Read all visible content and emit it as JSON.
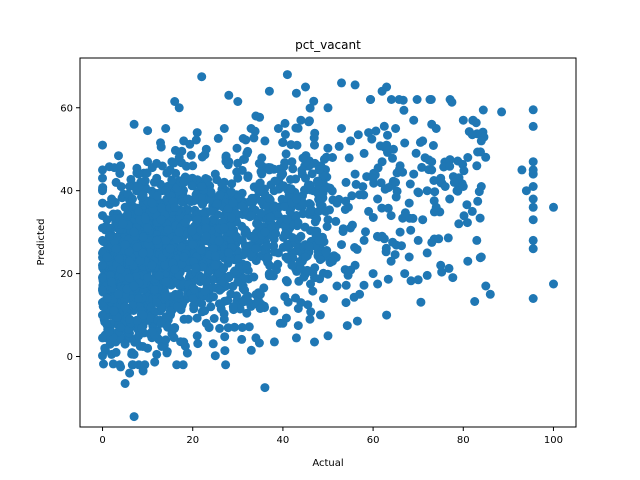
{
  "chart_data": {
    "type": "scatter",
    "title": "pct_vacant",
    "xlabel": "Actual",
    "ylabel": "Predicted",
    "xlim": [
      -5,
      105
    ],
    "ylim": [
      -17,
      72
    ],
    "x_ticks": [
      "0",
      "20",
      "40",
      "60",
      "80",
      "100"
    ],
    "y_ticks": [
      "0",
      "20",
      "40",
      "60"
    ],
    "grid": false,
    "marker_color": "#1f77b4",
    "point_count_approx": 1900,
    "points": [
      [
        0,
        0.2
      ],
      [
        0,
        4.5
      ],
      [
        0,
        10
      ],
      [
        0,
        13
      ],
      [
        0,
        16
      ],
      [
        0,
        19
      ],
      [
        0,
        22
      ],
      [
        0,
        25
      ],
      [
        0,
        28
      ],
      [
        0,
        31
      ],
      [
        0,
        34
      ],
      [
        0,
        37
      ],
      [
        0,
        40
      ],
      [
        0,
        43
      ],
      [
        0,
        45
      ],
      [
        0,
        51
      ],
      [
        0.5,
        2
      ],
      [
        0.8,
        8
      ],
      [
        1,
        14
      ],
      [
        1,
        24
      ],
      [
        1,
        33
      ],
      [
        1.5,
        6
      ],
      [
        1.5,
        29
      ],
      [
        2,
        0.5
      ],
      [
        2,
        18
      ],
      [
        2,
        38
      ],
      [
        2.5,
        11
      ],
      [
        3,
        1
      ],
      [
        3,
        26
      ],
      [
        3,
        42
      ],
      [
        3.5,
        15
      ],
      [
        4,
        -2.5
      ],
      [
        4,
        7
      ],
      [
        4,
        21
      ],
      [
        4,
        46
      ],
      [
        4.5,
        32
      ],
      [
        5,
        -6.5
      ],
      [
        5,
        3
      ],
      [
        5,
        12
      ],
      [
        5,
        27
      ],
      [
        5,
        36
      ],
      [
        6,
        -4
      ],
      [
        6,
        9
      ],
      [
        6,
        23
      ],
      [
        6,
        41
      ],
      [
        7,
        -14.5
      ],
      [
        7,
        0.5
      ],
      [
        7,
        17
      ],
      [
        7,
        30
      ],
      [
        7,
        56
      ],
      [
        8,
        5
      ],
      [
        8,
        14
      ],
      [
        8,
        35
      ],
      [
        8,
        44
      ],
      [
        9,
        -3.5
      ],
      [
        9,
        10
      ],
      [
        9,
        25
      ],
      [
        9,
        39
      ],
      [
        10,
        2
      ],
      [
        10,
        19
      ],
      [
        10,
        31
      ],
      [
        10,
        54.5
      ],
      [
        10,
        47
      ],
      [
        11,
        6
      ],
      [
        11,
        22
      ],
      [
        11,
        37
      ],
      [
        12,
        0.5
      ],
      [
        12,
        13
      ],
      [
        12,
        28
      ],
      [
        12,
        43
      ],
      [
        13,
        8
      ],
      [
        13,
        33
      ],
      [
        13,
        50.5
      ],
      [
        14,
        4
      ],
      [
        14,
        18
      ],
      [
        14,
        40
      ],
      [
        14,
        55
      ],
      [
        15,
        11
      ],
      [
        15,
        26
      ],
      [
        15,
        45
      ],
      [
        16,
        61.5
      ],
      [
        16,
        7
      ],
      [
        16,
        21
      ],
      [
        16,
        36
      ],
      [
        17,
        60
      ],
      [
        17,
        15
      ],
      [
        17,
        30
      ],
      [
        17,
        48
      ],
      [
        18,
        3.5
      ],
      [
        18,
        24
      ],
      [
        18,
        52
      ],
      [
        19,
        9
      ],
      [
        19,
        38
      ],
      [
        20,
        14
      ],
      [
        20,
        27
      ],
      [
        20,
        46
      ],
      [
        21,
        5
      ],
      [
        21,
        33
      ],
      [
        21,
        54
      ],
      [
        22,
        67.5
      ],
      [
        22,
        19
      ],
      [
        22,
        41
      ],
      [
        23,
        8
      ],
      [
        23,
        29
      ],
      [
        23,
        50
      ],
      [
        24,
        12
      ],
      [
        24,
        35
      ],
      [
        25,
        0.2
      ],
      [
        25,
        22
      ],
      [
        25,
        44
      ],
      [
        26,
        16
      ],
      [
        26,
        39
      ],
      [
        27,
        9
      ],
      [
        27,
        31
      ],
      [
        27,
        55
      ],
      [
        28,
        63
      ],
      [
        28,
        25
      ],
      [
        28,
        47
      ],
      [
        29,
        12
      ],
      [
        29,
        37
      ],
      [
        30,
        61.5
      ],
      [
        30,
        18
      ],
      [
        30,
        43
      ],
      [
        31,
        7
      ],
      [
        31,
        28
      ],
      [
        32,
        22
      ],
      [
        32,
        49
      ],
      [
        33,
        1.5
      ],
      [
        33,
        34
      ],
      [
        34,
        4.5
      ],
      [
        34,
        26
      ],
      [
        34,
        58
      ],
      [
        35,
        15
      ],
      [
        35,
        40
      ],
      [
        36,
        -7.5
      ],
      [
        36,
        30
      ],
      [
        36,
        52
      ],
      [
        37,
        64
      ],
      [
        37,
        20
      ],
      [
        37,
        45
      ],
      [
        38,
        11
      ],
      [
        38,
        36
      ],
      [
        39,
        25
      ],
      [
        39,
        55
      ],
      [
        40,
        8
      ],
      [
        40,
        41
      ],
      [
        41,
        68
      ],
      [
        41,
        18
      ],
      [
        41,
        33
      ],
      [
        42,
        47
      ],
      [
        42,
        22
      ],
      [
        43,
        63.5
      ],
      [
        43,
        4.5
      ],
      [
        43,
        38
      ],
      [
        44,
        13
      ],
      [
        44,
        29
      ],
      [
        44,
        57
      ],
      [
        45,
        65
      ],
      [
        45,
        24
      ],
      [
        45,
        43
      ],
      [
        46,
        9
      ],
      [
        46,
        35
      ],
      [
        47,
        3.5
      ],
      [
        47,
        51
      ],
      [
        47,
        19
      ],
      [
        48,
        28
      ],
      [
        48,
        45
      ],
      [
        49,
        14
      ],
      [
        49,
        40
      ],
      [
        50,
        5
      ],
      [
        50,
        33
      ],
      [
        50,
        60
      ],
      [
        51,
        23
      ],
      [
        51,
        48
      ],
      [
        52,
        37
      ],
      [
        52,
        17
      ],
      [
        53,
        66
      ],
      [
        53,
        27
      ],
      [
        53,
        55
      ],
      [
        54,
        13
      ],
      [
        54,
        42
      ],
      [
        55,
        31
      ],
      [
        55,
        52
      ],
      [
        56,
        65.5
      ],
      [
        56,
        22
      ],
      [
        56,
        44
      ],
      [
        57,
        39
      ],
      [
        57,
        15
      ],
      [
        58,
        49
      ],
      [
        58,
        28
      ],
      [
        59,
        35
      ],
      [
        59,
        54
      ],
      [
        60,
        20
      ],
      [
        60,
        43
      ],
      [
        61,
        38
      ],
      [
        61,
        17.5
      ],
      [
        62,
        64
      ],
      [
        62,
        47
      ],
      [
        62,
        29
      ],
      [
        63,
        10
      ],
      [
        63,
        65
      ],
      [
        63,
        51
      ],
      [
        64,
        34
      ],
      [
        64,
        23
      ],
      [
        65,
        55
      ],
      [
        65,
        42
      ],
      [
        66,
        30
      ],
      [
        66,
        46
      ],
      [
        67,
        51.5
      ],
      [
        67,
        20
      ],
      [
        68,
        37
      ],
      [
        68,
        24
      ],
      [
        69,
        44
      ],
      [
        69,
        57
      ],
      [
        70,
        28
      ],
      [
        70,
        18.5
      ],
      [
        71,
        52
      ],
      [
        71,
        33
      ],
      [
        72,
        40
      ],
      [
        72,
        25
      ],
      [
        73,
        56
      ],
      [
        73,
        47
      ],
      [
        74,
        36
      ],
      [
        74,
        55
      ],
      [
        75,
        43
      ],
      [
        75,
        22
      ],
      [
        76,
        41
      ],
      [
        77,
        38
      ],
      [
        78,
        42
      ],
      [
        79,
        32
      ],
      [
        80,
        41
      ],
      [
        80,
        57
      ],
      [
        81,
        48
      ],
      [
        81,
        23
      ],
      [
        82,
        35
      ],
      [
        82,
        53.5
      ],
      [
        83,
        46
      ],
      [
        83,
        28
      ],
      [
        84,
        41
      ],
      [
        84,
        52
      ],
      [
        84,
        24
      ],
      [
        85,
        17
      ],
      [
        86,
        15
      ],
      [
        88.5,
        59
      ],
      [
        93,
        45
      ],
      [
        94,
        40
      ],
      [
        95.5,
        14
      ],
      [
        95.5,
        26
      ],
      [
        95.5,
        28
      ],
      [
        95.5,
        33
      ],
      [
        95.5,
        36
      ],
      [
        95.5,
        38
      ],
      [
        95.5,
        41
      ],
      [
        95.5,
        44
      ],
      [
        95.5,
        45
      ],
      [
        95.5,
        47
      ],
      [
        95.5,
        55.5
      ],
      [
        95.5,
        59.5
      ],
      [
        100,
        17.5
      ],
      [
        100,
        36
      ]
    ]
  }
}
